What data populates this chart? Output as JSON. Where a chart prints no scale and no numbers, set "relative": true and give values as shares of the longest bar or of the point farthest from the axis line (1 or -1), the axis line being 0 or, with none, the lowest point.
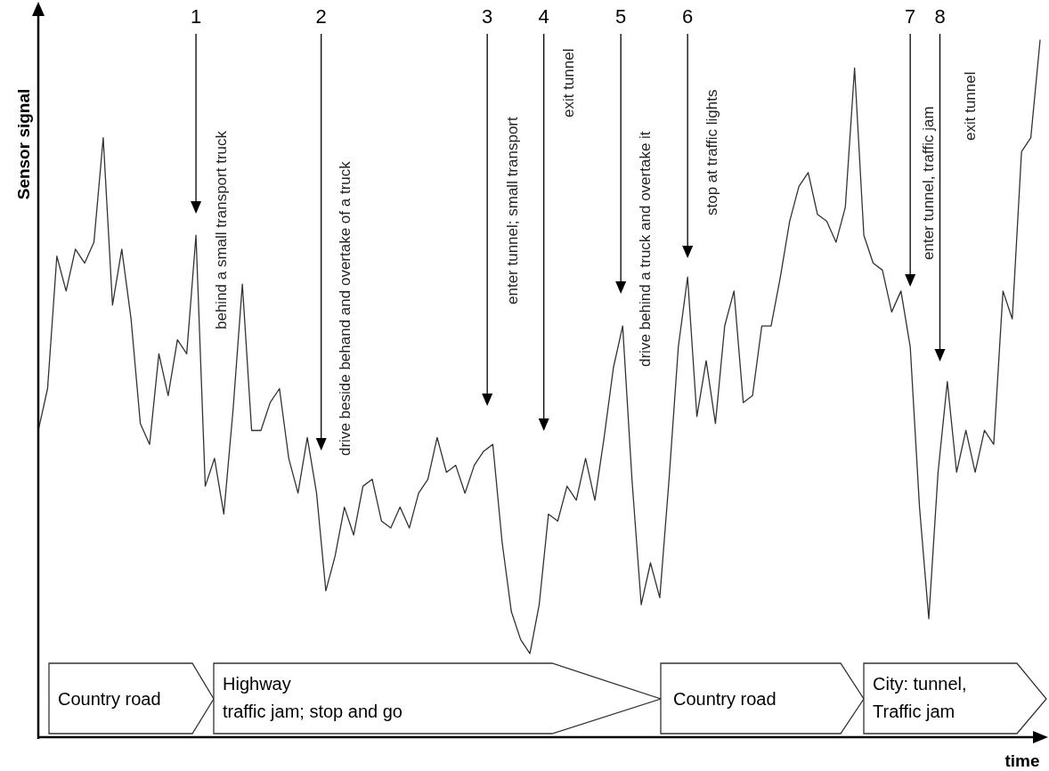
{
  "chart_data": {
    "type": "line",
    "relative": true,
    "marker": "none",
    "grid": false,
    "xlabel": "time",
    "ylabel": "Sensor signal",
    "categories": [
      null,
      null,
      null,
      null,
      null,
      null,
      null,
      null,
      null,
      null,
      null,
      null,
      null,
      null,
      null,
      null,
      null,
      null,
      null,
      null,
      null,
      null,
      null,
      null,
      null,
      null,
      null,
      null,
      null,
      null,
      null,
      null,
      null,
      null,
      null,
      null,
      null,
      null,
      null,
      null,
      null,
      null,
      null,
      null,
      null,
      null,
      null,
      null,
      null,
      null,
      null,
      null,
      null,
      null,
      null,
      null,
      null,
      null,
      null,
      null,
      null,
      null,
      null,
      null,
      null,
      null,
      null,
      null,
      null,
      null,
      null,
      null,
      null,
      null,
      null,
      null,
      null,
      null,
      null,
      null,
      null,
      null,
      null,
      null,
      null,
      null,
      null,
      null,
      null,
      null,
      null,
      null,
      null,
      null,
      null,
      null,
      null,
      null,
      null,
      null,
      null,
      null,
      null,
      null,
      null,
      null,
      null,
      null,
      null
    ],
    "series": [
      {
        "color": "#333333",
        "values": [
          0.44,
          0.5,
          0.69,
          0.64,
          0.7,
          0.68,
          0.71,
          0.86,
          0.62,
          0.7,
          0.6,
          0.45,
          0.42,
          0.55,
          0.49,
          0.57,
          0.55,
          0.72,
          0.36,
          0.4,
          0.32,
          0.47,
          0.65,
          0.44,
          0.44,
          0.48,
          0.5,
          0.4,
          0.35,
          0.43,
          0.35,
          0.21,
          0.26,
          0.33,
          0.29,
          0.36,
          0.37,
          0.31,
          0.3,
          0.33,
          0.3,
          0.35,
          0.37,
          0.43,
          0.38,
          0.39,
          0.35,
          0.39,
          0.41,
          0.42,
          0.28,
          0.18,
          0.14,
          0.12,
          0.19,
          0.32,
          0.31,
          0.36,
          0.34,
          0.4,
          0.34,
          0.43,
          0.53,
          0.59,
          0.37,
          0.19,
          0.25,
          0.2,
          0.37,
          0.56,
          0.66,
          0.46,
          0.54,
          0.45,
          0.59,
          0.64,
          0.48,
          0.49,
          0.59,
          0.59,
          0.66,
          0.74,
          0.79,
          0.81,
          0.75,
          0.74,
          0.71,
          0.76,
          0.96,
          0.72,
          0.68,
          0.67,
          0.61,
          0.64,
          0.56,
          0.33,
          0.17,
          0.38,
          0.51,
          0.38,
          0.44,
          0.38,
          0.44,
          0.42,
          0.64,
          0.6,
          0.84,
          0.86,
          1.0
        ]
      }
    ],
    "annotations": [
      "1",
      "behind  a small transport truck",
      "2",
      "drive beside behand and overtake of a truck",
      "3",
      "enter tunnel; small transport",
      "4",
      "exit tunnel",
      "5",
      "drive behind a truck and overtake it",
      "6",
      "stop at traffic lights",
      "7",
      "enter tunnel, traffic jam",
      "8",
      "exit tunnel",
      "Country road",
      "Highway\ntraffic jam; stop and go",
      "Country road",
      "City: tunnel,\nTraffic jam"
    ]
  }
}
